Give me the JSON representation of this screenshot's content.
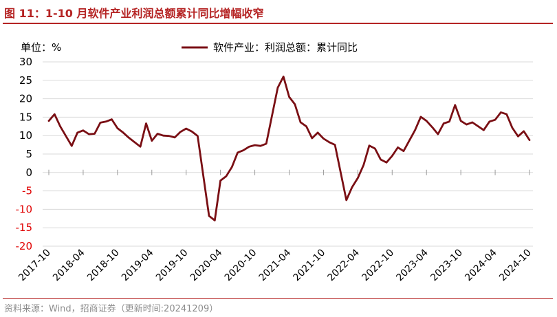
{
  "figure": {
    "title": "图 11：1-10 月软件产业利润总额累计同比增幅收窄",
    "source": "资料来源：Wind，招商证券（更新时间:20241209）"
  },
  "colors": {
    "accent": "#b52424",
    "series_line": "#7a0f14",
    "negative_tick": "#e00000",
    "grid": "#d9d9d9"
  },
  "chart_data": {
    "type": "line",
    "unit_label": "单位：%",
    "ylim": [
      -20,
      30
    ],
    "yticks": [
      30,
      25,
      20,
      15,
      10,
      5,
      0,
      -5,
      -10,
      -15,
      -20
    ],
    "grid": "horizontal",
    "legend_position": "top-center",
    "x_tick_labels": [
      "2017-10",
      "2018-04",
      "2018-10",
      "2019-04",
      "2019-10",
      "2020-04",
      "2020-10",
      "2021-04",
      "2021-10",
      "2022-04",
      "2022-10",
      "2023-04",
      "2023-10",
      "2024-04",
      "2024-10"
    ],
    "series": [
      {
        "name": "软件产业：利润总额：累计同比",
        "x": [
          "2017-10",
          "2017-11",
          "2017-12",
          "2018-02",
          "2018-03",
          "2018-04",
          "2018-05",
          "2018-06",
          "2018-07",
          "2018-08",
          "2018-09",
          "2018-10",
          "2018-11",
          "2018-12",
          "2019-02",
          "2019-03",
          "2019-04",
          "2019-05",
          "2019-06",
          "2019-07",
          "2019-08",
          "2019-09",
          "2019-10",
          "2019-11",
          "2019-12",
          "2020-02",
          "2020-03",
          "2020-04",
          "2020-05",
          "2020-06",
          "2020-07",
          "2020-08",
          "2020-09",
          "2020-10",
          "2020-11",
          "2020-12",
          "2021-02",
          "2021-03",
          "2021-04",
          "2021-05",
          "2021-06",
          "2021-07",
          "2021-08",
          "2021-09",
          "2021-10",
          "2021-11",
          "2021-12",
          "2022-02",
          "2022-03",
          "2022-04",
          "2022-05",
          "2022-06",
          "2022-07",
          "2022-08",
          "2022-09",
          "2022-10",
          "2022-11",
          "2022-12",
          "2023-02",
          "2023-03",
          "2023-04",
          "2023-05",
          "2023-06",
          "2023-07",
          "2023-08",
          "2023-09",
          "2023-10",
          "2023-11",
          "2023-12",
          "2024-02",
          "2024-03",
          "2024-04",
          "2024-05",
          "2024-06",
          "2024-07",
          "2024-08",
          "2024-09",
          "2024-10"
        ],
        "values": [
          14.0,
          15.8,
          12.5,
          7.2,
          10.8,
          11.4,
          10.4,
          10.5,
          13.5,
          13.8,
          14.4,
          12.0,
          10.8,
          9.4,
          7.0,
          13.3,
          8.6,
          10.5,
          10.0,
          9.9,
          9.5,
          11.0,
          11.9,
          11.1,
          9.9,
          -11.8,
          -13.0,
          -2.2,
          -1.0,
          1.5,
          5.4,
          6.0,
          7.0,
          7.4,
          7.2,
          7.8,
          23.0,
          26.0,
          20.5,
          18.5,
          13.6,
          12.5,
          9.3,
          10.8,
          9.2,
          8.2,
          7.5,
          -7.5,
          -4.0,
          -1.5,
          2.0,
          7.3,
          6.5,
          3.5,
          2.7,
          4.5,
          6.8,
          5.8,
          11.5,
          15.1,
          14.0,
          12.3,
          10.4,
          13.3,
          13.8,
          18.3,
          14.0,
          13.0,
          13.6,
          11.5,
          13.8,
          14.3,
          16.3,
          15.8,
          12.1,
          9.8,
          11.2,
          8.8
        ]
      }
    ]
  }
}
